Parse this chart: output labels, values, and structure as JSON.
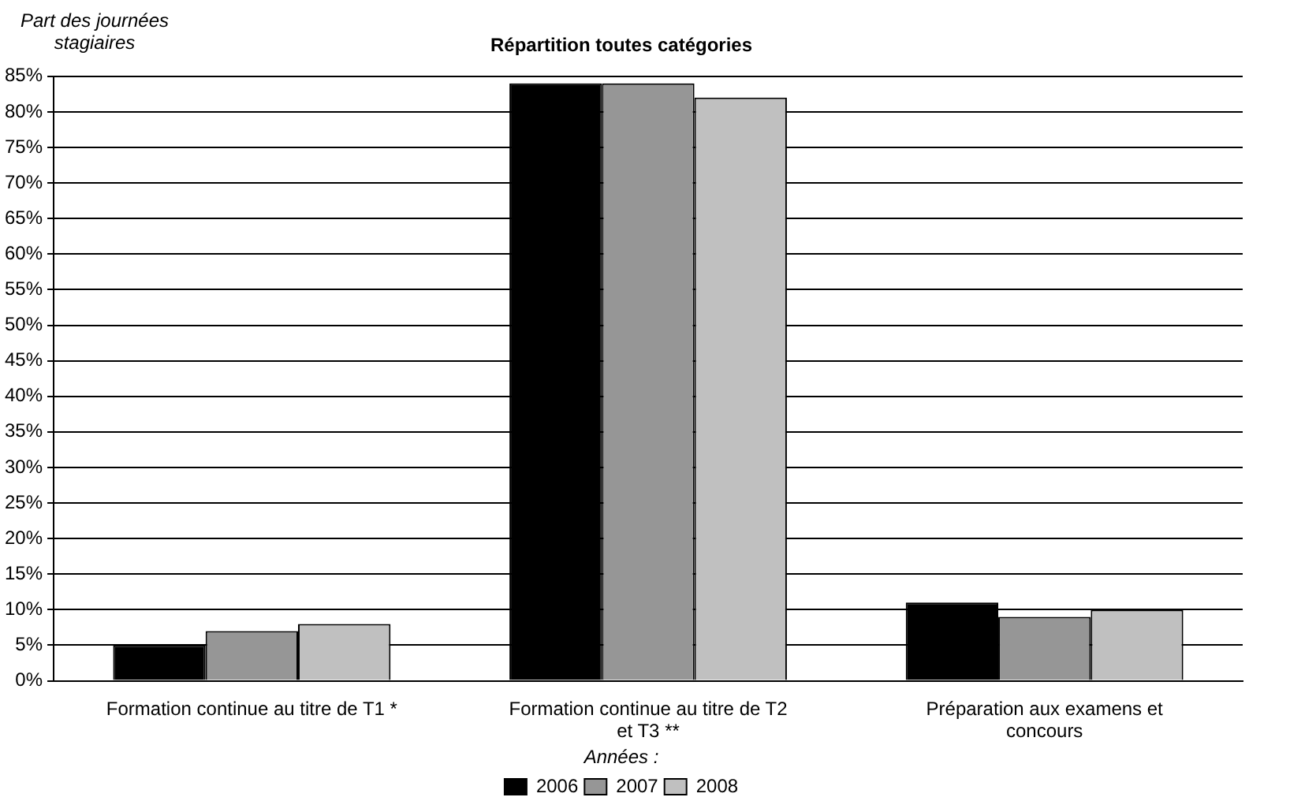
{
  "chart_data": {
    "type": "bar",
    "title": "Répartition toutes catégories",
    "ylabel": "Part des journées stagiaires",
    "legend_title": "Années :",
    "categories": [
      "Formation continue au titre de T1 *",
      "Formation continue au titre de T2 et T3 **",
      "Préparation aux examens et concours"
    ],
    "series": [
      {
        "name": "2006",
        "color": "#000000",
        "values": [
          5,
          84,
          11
        ]
      },
      {
        "name": "2007",
        "color": "#969696",
        "values": [
          7,
          84,
          9
        ]
      },
      {
        "name": "2008",
        "color": "#c0c0c0",
        "values": [
          8,
          82,
          10
        ]
      }
    ],
    "ylim": [
      0,
      85
    ],
    "yticks": [
      {
        "value": 0,
        "label": "0%"
      },
      {
        "value": 5,
        "label": "5%"
      },
      {
        "value": 10,
        "label": "10%"
      },
      {
        "value": 15,
        "label": "15%"
      },
      {
        "value": 20,
        "label": "20%"
      },
      {
        "value": 25,
        "label": "25%"
      },
      {
        "value": 30,
        "label": "30%"
      },
      {
        "value": 35,
        "label": "35%"
      },
      {
        "value": 40,
        "label": "40%"
      },
      {
        "value": 45,
        "label": "45%"
      },
      {
        "value": 50,
        "label": "50%"
      },
      {
        "value": 55,
        "label": "55%"
      },
      {
        "value": 60,
        "label": "60%"
      },
      {
        "value": 65,
        "label": "65%"
      },
      {
        "value": 70,
        "label": "70%"
      },
      {
        "value": 75,
        "label": "75%"
      },
      {
        "value": 80,
        "label": "80%"
      },
      {
        "value": 85,
        "label": "85%"
      }
    ],
    "grid": "y",
    "legend": "bottom"
  }
}
